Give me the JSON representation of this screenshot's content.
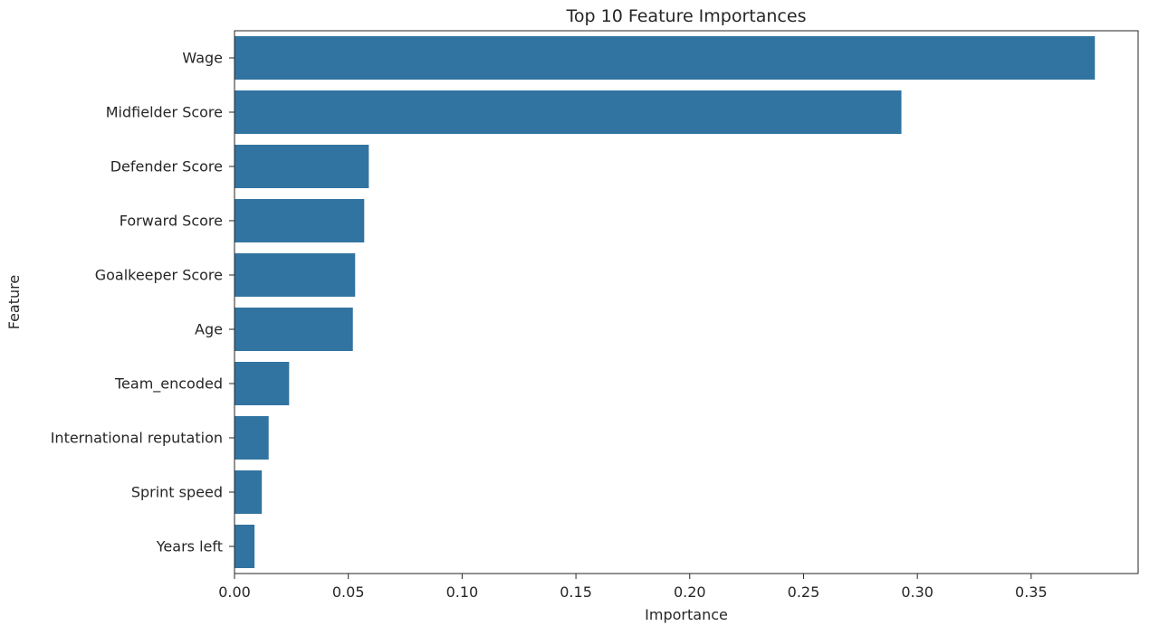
{
  "chart_data": {
    "type": "bar",
    "orientation": "horizontal",
    "title": "Top 10 Feature Importances",
    "xlabel": "Importance",
    "ylabel": "Feature",
    "categories": [
      "Wage",
      "Midfielder Score",
      "Defender Score",
      "Forward Score",
      "Goalkeeper Score",
      "Age",
      "Team_encoded",
      "International reputation",
      "Sprint speed",
      "Years left"
    ],
    "values": [
      0.378,
      0.293,
      0.059,
      0.057,
      0.053,
      0.052,
      0.024,
      0.015,
      0.012,
      0.0088
    ],
    "xlim": [
      0,
      0.397
    ],
    "xticks": [
      "0.00",
      "0.05",
      "0.10",
      "0.15",
      "0.20",
      "0.25",
      "0.30",
      "0.35"
    ],
    "xtick_values": [
      0,
      0.05,
      0.1,
      0.15,
      0.2,
      0.25,
      0.3,
      0.35
    ],
    "grid": false,
    "bar_color": "#3274a1"
  }
}
